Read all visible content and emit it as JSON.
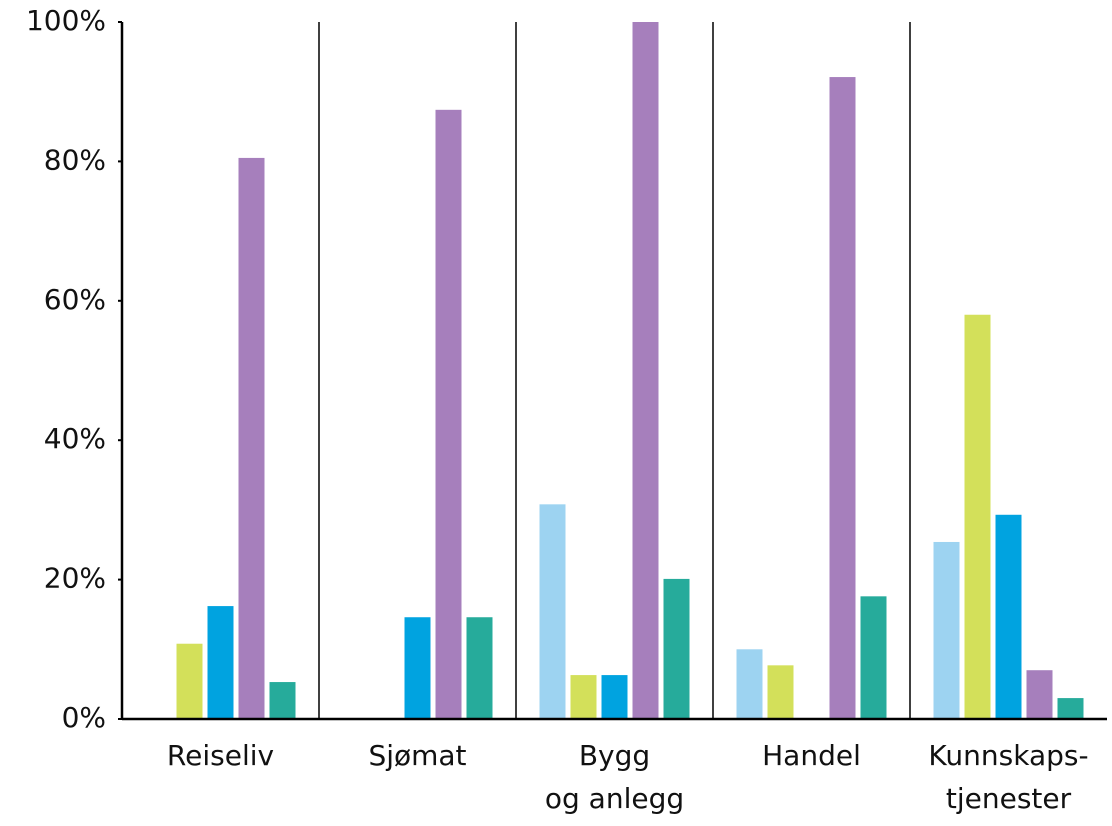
{
  "chart_data": {
    "type": "bar",
    "categories": [
      [
        "Reiseliv"
      ],
      [
        "Sjømat"
      ],
      [
        "Bygg",
        "og anlegg"
      ],
      [
        "Handel"
      ],
      [
        "Kunnskaps-",
        "tjenester"
      ]
    ],
    "series": [
      {
        "color": "#9dd3f1",
        "values": [
          0,
          0,
          30.8,
          10,
          25.4
        ]
      },
      {
        "color": "#d3e05a",
        "values": [
          10.8,
          0,
          6.3,
          7.7,
          58
        ]
      },
      {
        "color": "#00a3e0",
        "values": [
          16.2,
          14.6,
          6.3,
          0,
          29.3
        ]
      },
      {
        "color": "#a67fbc",
        "values": [
          80.5,
          87.4,
          100,
          92.1,
          7
        ]
      },
      {
        "color": "#26ab9b",
        "values": [
          5.3,
          14.6,
          20.1,
          17.6,
          3
        ]
      }
    ],
    "ylim": [
      0,
      100
    ],
    "yticks": [
      {
        "value": 0,
        "label": "0%"
      },
      {
        "value": 20,
        "label": "20%"
      },
      {
        "value": 40,
        "label": "40%"
      },
      {
        "value": 60,
        "label": "60%"
      },
      {
        "value": 80,
        "label": "80%"
      },
      {
        "value": 100,
        "label": "100%"
      }
    ]
  }
}
